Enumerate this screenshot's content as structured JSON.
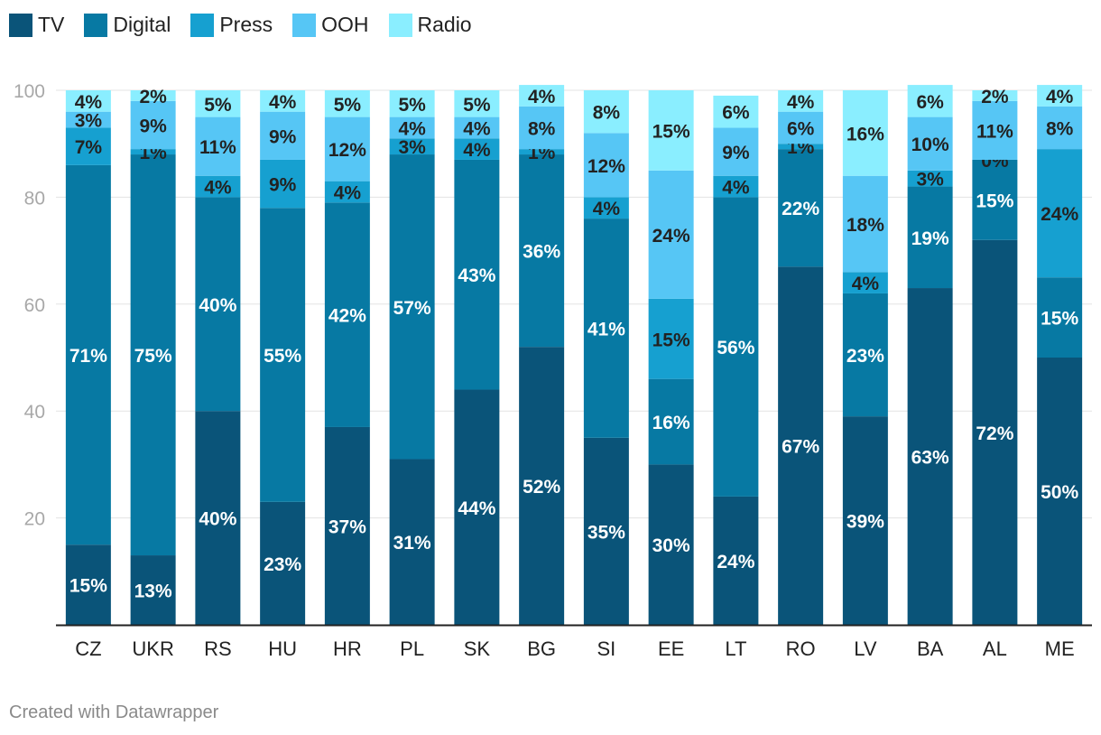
{
  "chart_data": {
    "type": "bar",
    "stacked": true,
    "categories": [
      "CZ",
      "UKR",
      "RS",
      "HU",
      "HR",
      "PL",
      "SK",
      "BG",
      "SI",
      "EE",
      "LT",
      "RO",
      "LV",
      "BA",
      "AL",
      "ME"
    ],
    "series": [
      {
        "name": "TV",
        "color": "#0a5479",
        "values": [
          15,
          13,
          40,
          23,
          37,
          31,
          44,
          52,
          35,
          30,
          24,
          67,
          39,
          63,
          72,
          50
        ]
      },
      {
        "name": "Digital",
        "color": "#0779a3",
        "values": [
          71,
          75,
          40,
          55,
          42,
          57,
          43,
          36,
          41,
          16,
          56,
          22,
          23,
          19,
          15,
          15
        ]
      },
      {
        "name": "Press",
        "color": "#16a0d0",
        "values": [
          7,
          1,
          4,
          9,
          4,
          3,
          4,
          1,
          4,
          15,
          4,
          1,
          4,
          3,
          0,
          24
        ]
      },
      {
        "name": "OOH",
        "color": "#56c6f5",
        "values": [
          3,
          9,
          11,
          9,
          12,
          4,
          4,
          8,
          12,
          24,
          9,
          6,
          18,
          10,
          11,
          8
        ]
      },
      {
        "name": "Radio",
        "color": "#8aeeff",
        "values": [
          4,
          2,
          5,
          4,
          5,
          5,
          5,
          4,
          8,
          15,
          6,
          4,
          16,
          6,
          2,
          4
        ]
      }
    ],
    "value_suffix": "%",
    "ylim": [
      0,
      100
    ],
    "yticks": [
      20,
      40,
      60,
      80,
      100
    ],
    "grid": true,
    "legend": "top-left"
  },
  "footer": {
    "credit": "Created with Datawrapper"
  }
}
